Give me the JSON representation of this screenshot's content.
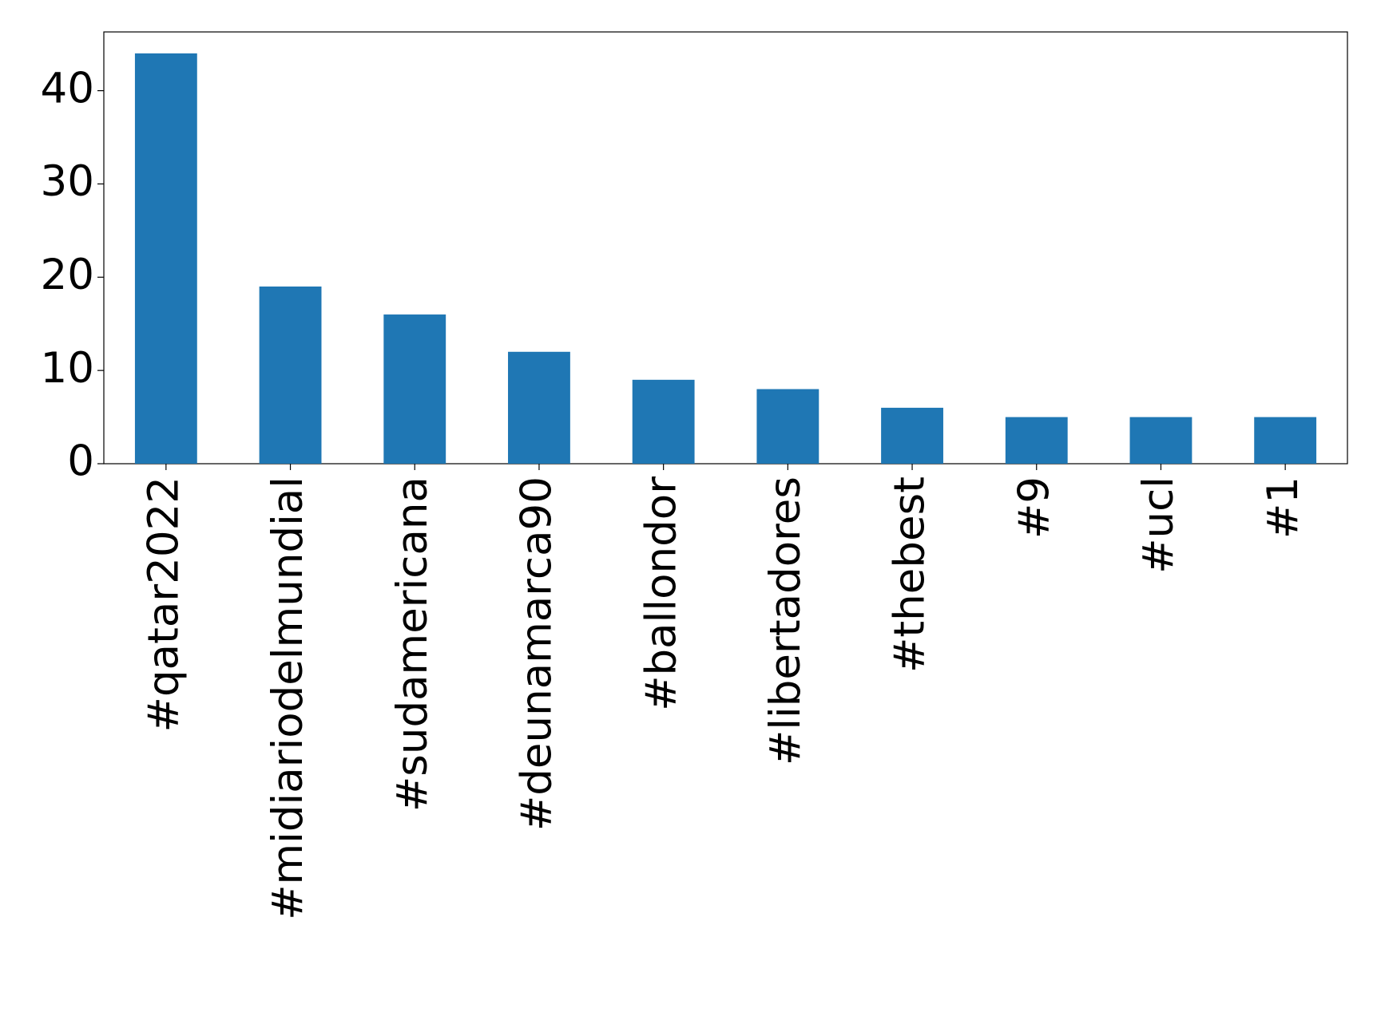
{
  "chart_data": {
    "type": "bar",
    "categories": [
      "#qatar2022",
      "#midiariodelmundial",
      "#sudamericana",
      "#deunamarca90",
      "#ballondor",
      "#libertadores",
      "#thebest",
      "#9",
      "#ucl",
      "#1"
    ],
    "values": [
      44,
      19,
      16,
      12,
      9,
      8,
      6,
      5,
      5,
      5
    ],
    "color": "#1f77b4",
    "ylim": [
      0,
      46.3
    ],
    "yticks": [
      0,
      10,
      20,
      30,
      40
    ],
    "grid": false
  }
}
